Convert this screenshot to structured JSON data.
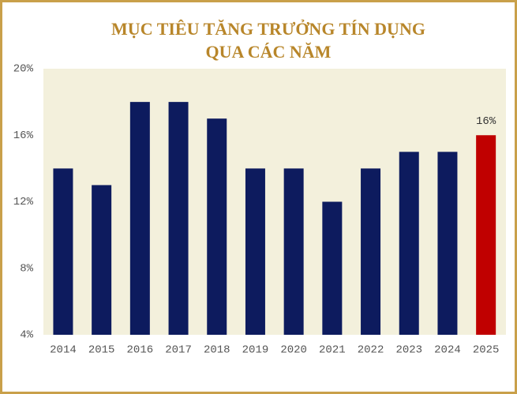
{
  "chart_data": {
    "type": "bar",
    "title": [
      "MỤC TIÊU TĂNG TRƯỞNG TÍN DỤNG",
      "QUA CÁC NĂM"
    ],
    "categories": [
      "2014",
      "2015",
      "2016",
      "2017",
      "2018",
      "2019",
      "2020",
      "2021",
      "2022",
      "2023",
      "2024",
      "2025"
    ],
    "values": [
      14,
      13,
      18,
      18,
      17,
      14,
      14,
      12,
      14,
      15,
      15,
      16
    ],
    "value_labels": [
      null,
      null,
      null,
      null,
      null,
      null,
      null,
      null,
      null,
      null,
      null,
      "16%"
    ],
    "colors": [
      "#0d1b5e",
      "#0d1b5e",
      "#0d1b5e",
      "#0d1b5e",
      "#0d1b5e",
      "#0d1b5e",
      "#0d1b5e",
      "#0d1b5e",
      "#0d1b5e",
      "#0d1b5e",
      "#0d1b5e",
      "#c00000"
    ],
    "ylim": [
      4,
      20
    ],
    "yticks": [
      {
        "value": 4,
        "label": "4%"
      },
      {
        "value": 8,
        "label": "8%"
      },
      {
        "value": 12,
        "label": "12%"
      },
      {
        "value": 16,
        "label": "16%"
      },
      {
        "value": 20,
        "label": "20%"
      }
    ],
    "grid": false
  }
}
